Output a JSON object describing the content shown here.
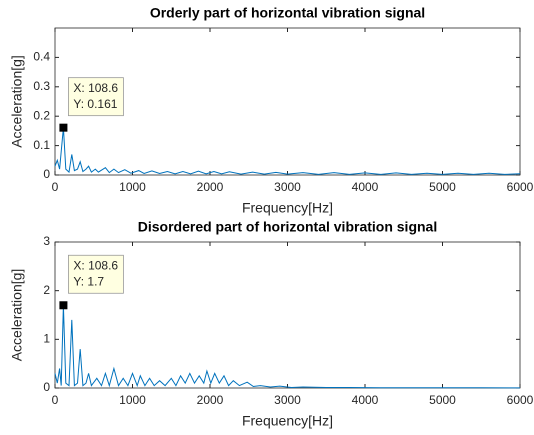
{
  "chart_data": [
    {
      "type": "line",
      "title": "Orderly part of horizontal vibration signal",
      "xlabel": "Frequency[Hz]",
      "ylabel": "Acceleration[g]",
      "color": "#0072bd",
      "xlim": [
        0,
        6000
      ],
      "xticks": [
        0,
        1000,
        2000,
        3000,
        4000,
        5000,
        6000
      ],
      "ylim": [
        0,
        0.5
      ],
      "yticks": [
        0,
        0.1,
        0.2,
        0.3,
        0.4
      ],
      "x": [
        0,
        30,
        60,
        108.6,
        140,
        180,
        217,
        250,
        290,
        325,
        360,
        400,
        434,
        470,
        520,
        560,
        650,
        700,
        760,
        820,
        900,
        980,
        1080,
        1150,
        1250,
        1350,
        1450,
        1550,
        1650,
        1750,
        1850,
        1950,
        2050,
        2150,
        2250,
        2400,
        2550,
        2700,
        2850,
        3000,
        3200,
        3400,
        3600,
        3800,
        4000,
        4200,
        4400,
        4600,
        4800,
        5000,
        5200,
        5400,
        5600,
        5800,
        6000
      ],
      "values": [
        0.03,
        0.05,
        0.02,
        0.161,
        0.02,
        0.01,
        0.07,
        0.015,
        0.02,
        0.045,
        0.012,
        0.02,
        0.03,
        0.01,
        0.02,
        0.01,
        0.025,
        0.008,
        0.02,
        0.008,
        0.018,
        0.006,
        0.015,
        0.005,
        0.014,
        0.005,
        0.012,
        0.004,
        0.012,
        0.004,
        0.013,
        0.004,
        0.012,
        0.004,
        0.011,
        0.003,
        0.01,
        0.003,
        0.009,
        0.003,
        0.008,
        0.002,
        0.008,
        0.002,
        0.007,
        0.002,
        0.007,
        0.002,
        0.006,
        0.002,
        0.006,
        0.002,
        0.006,
        0.002,
        0.004
      ],
      "datatip": {
        "x": 108.6,
        "y": 0.161,
        "labels": [
          "X: 108.6",
          "Y: 0.161"
        ]
      }
    },
    {
      "type": "line",
      "title": "Disordered part of horizontal vibration signal",
      "xlabel": "Frequency[Hz]",
      "ylabel": "Acceleration[g]",
      "color": "#0072bd",
      "xlim": [
        0,
        6000
      ],
      "xticks": [
        0,
        1000,
        2000,
        3000,
        4000,
        5000,
        6000
      ],
      "ylim": [
        0,
        3
      ],
      "yticks": [
        0,
        1,
        2,
        3
      ],
      "x": [
        0,
        30,
        60,
        80,
        108.6,
        140,
        180,
        217,
        250,
        290,
        325,
        360,
        400,
        434,
        470,
        540,
        600,
        650,
        700,
        760,
        820,
        880,
        940,
        1000,
        1060,
        1100,
        1160,
        1220,
        1280,
        1350,
        1420,
        1500,
        1560,
        1620,
        1680,
        1740,
        1800,
        1860,
        1920,
        1960,
        2010,
        2060,
        2120,
        2180,
        2240,
        2300,
        2380,
        2480,
        2560,
        2650,
        2780,
        2900,
        3050,
        3200,
        3500,
        3800,
        4200,
        4600,
        5000,
        5500,
        6000
      ],
      "values": [
        0.3,
        0.1,
        0.4,
        0.05,
        1.7,
        0.1,
        0.05,
        1.4,
        0.05,
        0.1,
        0.8,
        0.05,
        0.1,
        0.3,
        0.05,
        0.2,
        0.05,
        0.3,
        0.05,
        0.4,
        0.05,
        0.2,
        0.05,
        0.3,
        0.05,
        0.25,
        0.05,
        0.2,
        0.05,
        0.15,
        0.05,
        0.2,
        0.05,
        0.25,
        0.1,
        0.3,
        0.1,
        0.25,
        0.1,
        0.35,
        0.1,
        0.3,
        0.1,
        0.25,
        0.05,
        0.15,
        0.05,
        0.12,
        0.03,
        0.05,
        0.02,
        0.04,
        0.01,
        0.02,
        0.01,
        0.01,
        0.005,
        0.005,
        0.005,
        0.005,
        0.003
      ],
      "datatip": {
        "x": 108.6,
        "y": 1.7,
        "labels": [
          "X: 108.6",
          "Y: 1.7"
        ]
      }
    }
  ]
}
